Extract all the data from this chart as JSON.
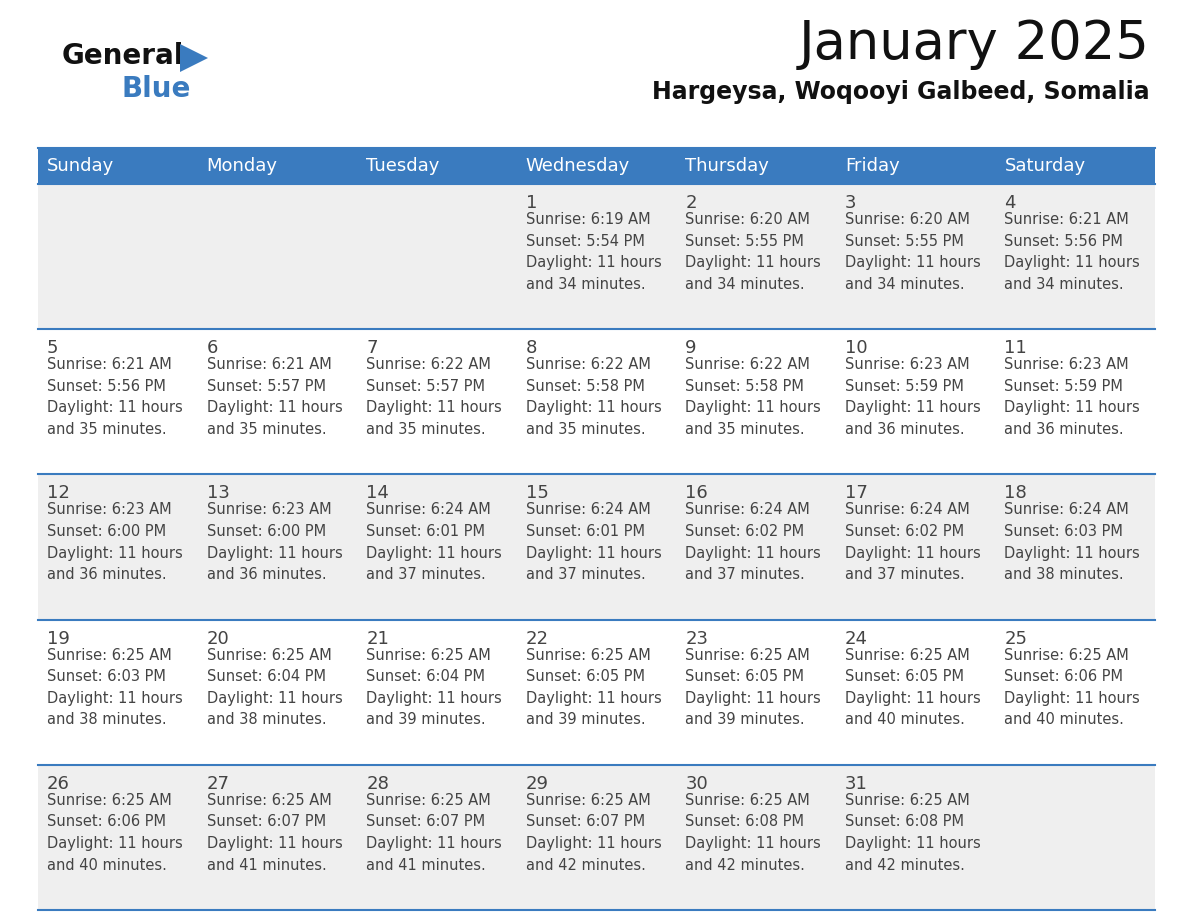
{
  "title": "January 2025",
  "subtitle": "Hargeysa, Woqooyi Galbeed, Somalia",
  "header_bg_color": "#3a7bbf",
  "header_text_color": "#ffffff",
  "bg_color": "#ffffff",
  "cell_bg_row1": "#efefef",
  "cell_bg_row2": "#ffffff",
  "day_names": [
    "Sunday",
    "Monday",
    "Tuesday",
    "Wednesday",
    "Thursday",
    "Friday",
    "Saturday"
  ],
  "title_fontsize": 38,
  "subtitle_fontsize": 17,
  "day_name_fontsize": 13,
  "cell_number_fontsize": 13,
  "cell_text_fontsize": 10.5,
  "grid_line_color": "#3a7bbf",
  "text_color": "#444444",
  "weeks": [
    [
      {
        "day": null,
        "info": null
      },
      {
        "day": null,
        "info": null
      },
      {
        "day": null,
        "info": null
      },
      {
        "day": 1,
        "info": "Sunrise: 6:19 AM\nSunset: 5:54 PM\nDaylight: 11 hours\nand 34 minutes."
      },
      {
        "day": 2,
        "info": "Sunrise: 6:20 AM\nSunset: 5:55 PM\nDaylight: 11 hours\nand 34 minutes."
      },
      {
        "day": 3,
        "info": "Sunrise: 6:20 AM\nSunset: 5:55 PM\nDaylight: 11 hours\nand 34 minutes."
      },
      {
        "day": 4,
        "info": "Sunrise: 6:21 AM\nSunset: 5:56 PM\nDaylight: 11 hours\nand 34 minutes."
      }
    ],
    [
      {
        "day": 5,
        "info": "Sunrise: 6:21 AM\nSunset: 5:56 PM\nDaylight: 11 hours\nand 35 minutes."
      },
      {
        "day": 6,
        "info": "Sunrise: 6:21 AM\nSunset: 5:57 PM\nDaylight: 11 hours\nand 35 minutes."
      },
      {
        "day": 7,
        "info": "Sunrise: 6:22 AM\nSunset: 5:57 PM\nDaylight: 11 hours\nand 35 minutes."
      },
      {
        "day": 8,
        "info": "Sunrise: 6:22 AM\nSunset: 5:58 PM\nDaylight: 11 hours\nand 35 minutes."
      },
      {
        "day": 9,
        "info": "Sunrise: 6:22 AM\nSunset: 5:58 PM\nDaylight: 11 hours\nand 35 minutes."
      },
      {
        "day": 10,
        "info": "Sunrise: 6:23 AM\nSunset: 5:59 PM\nDaylight: 11 hours\nand 36 minutes."
      },
      {
        "day": 11,
        "info": "Sunrise: 6:23 AM\nSunset: 5:59 PM\nDaylight: 11 hours\nand 36 minutes."
      }
    ],
    [
      {
        "day": 12,
        "info": "Sunrise: 6:23 AM\nSunset: 6:00 PM\nDaylight: 11 hours\nand 36 minutes."
      },
      {
        "day": 13,
        "info": "Sunrise: 6:23 AM\nSunset: 6:00 PM\nDaylight: 11 hours\nand 36 minutes."
      },
      {
        "day": 14,
        "info": "Sunrise: 6:24 AM\nSunset: 6:01 PM\nDaylight: 11 hours\nand 37 minutes."
      },
      {
        "day": 15,
        "info": "Sunrise: 6:24 AM\nSunset: 6:01 PM\nDaylight: 11 hours\nand 37 minutes."
      },
      {
        "day": 16,
        "info": "Sunrise: 6:24 AM\nSunset: 6:02 PM\nDaylight: 11 hours\nand 37 minutes."
      },
      {
        "day": 17,
        "info": "Sunrise: 6:24 AM\nSunset: 6:02 PM\nDaylight: 11 hours\nand 37 minutes."
      },
      {
        "day": 18,
        "info": "Sunrise: 6:24 AM\nSunset: 6:03 PM\nDaylight: 11 hours\nand 38 minutes."
      }
    ],
    [
      {
        "day": 19,
        "info": "Sunrise: 6:25 AM\nSunset: 6:03 PM\nDaylight: 11 hours\nand 38 minutes."
      },
      {
        "day": 20,
        "info": "Sunrise: 6:25 AM\nSunset: 6:04 PM\nDaylight: 11 hours\nand 38 minutes."
      },
      {
        "day": 21,
        "info": "Sunrise: 6:25 AM\nSunset: 6:04 PM\nDaylight: 11 hours\nand 39 minutes."
      },
      {
        "day": 22,
        "info": "Sunrise: 6:25 AM\nSunset: 6:05 PM\nDaylight: 11 hours\nand 39 minutes."
      },
      {
        "day": 23,
        "info": "Sunrise: 6:25 AM\nSunset: 6:05 PM\nDaylight: 11 hours\nand 39 minutes."
      },
      {
        "day": 24,
        "info": "Sunrise: 6:25 AM\nSunset: 6:05 PM\nDaylight: 11 hours\nand 40 minutes."
      },
      {
        "day": 25,
        "info": "Sunrise: 6:25 AM\nSunset: 6:06 PM\nDaylight: 11 hours\nand 40 minutes."
      }
    ],
    [
      {
        "day": 26,
        "info": "Sunrise: 6:25 AM\nSunset: 6:06 PM\nDaylight: 11 hours\nand 40 minutes."
      },
      {
        "day": 27,
        "info": "Sunrise: 6:25 AM\nSunset: 6:07 PM\nDaylight: 11 hours\nand 41 minutes."
      },
      {
        "day": 28,
        "info": "Sunrise: 6:25 AM\nSunset: 6:07 PM\nDaylight: 11 hours\nand 41 minutes."
      },
      {
        "day": 29,
        "info": "Sunrise: 6:25 AM\nSunset: 6:07 PM\nDaylight: 11 hours\nand 42 minutes."
      },
      {
        "day": 30,
        "info": "Sunrise: 6:25 AM\nSunset: 6:08 PM\nDaylight: 11 hours\nand 42 minutes."
      },
      {
        "day": 31,
        "info": "Sunrise: 6:25 AM\nSunset: 6:08 PM\nDaylight: 11 hours\nand 42 minutes."
      },
      {
        "day": null,
        "info": null
      }
    ]
  ]
}
